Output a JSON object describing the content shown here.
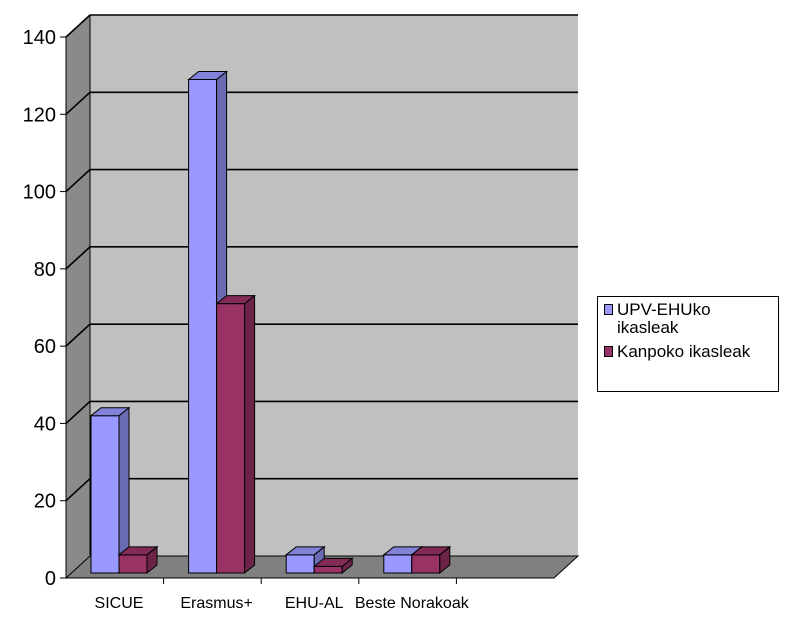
{
  "chart_data": {
    "type": "bar",
    "categories": [
      "SICUE",
      "Erasmus+",
      "EHU-AL",
      "Beste Norakoak"
    ],
    "series": [
      {
        "name": "UPV-EHUko ikasleak",
        "values": [
          42,
          129,
          6,
          6
        ],
        "color": "#9999ff"
      },
      {
        "name": "Kanpoko ikasleak",
        "values": [
          6,
          71,
          3,
          6
        ],
        "color": "#993366"
      }
    ],
    "yticks": [
      0,
      20,
      40,
      60,
      80,
      100,
      120,
      140
    ],
    "ylim": [
      0,
      140
    ],
    "grid": true,
    "legend_position": "right",
    "style": "3d",
    "wall_color": "#c0c0c0"
  }
}
